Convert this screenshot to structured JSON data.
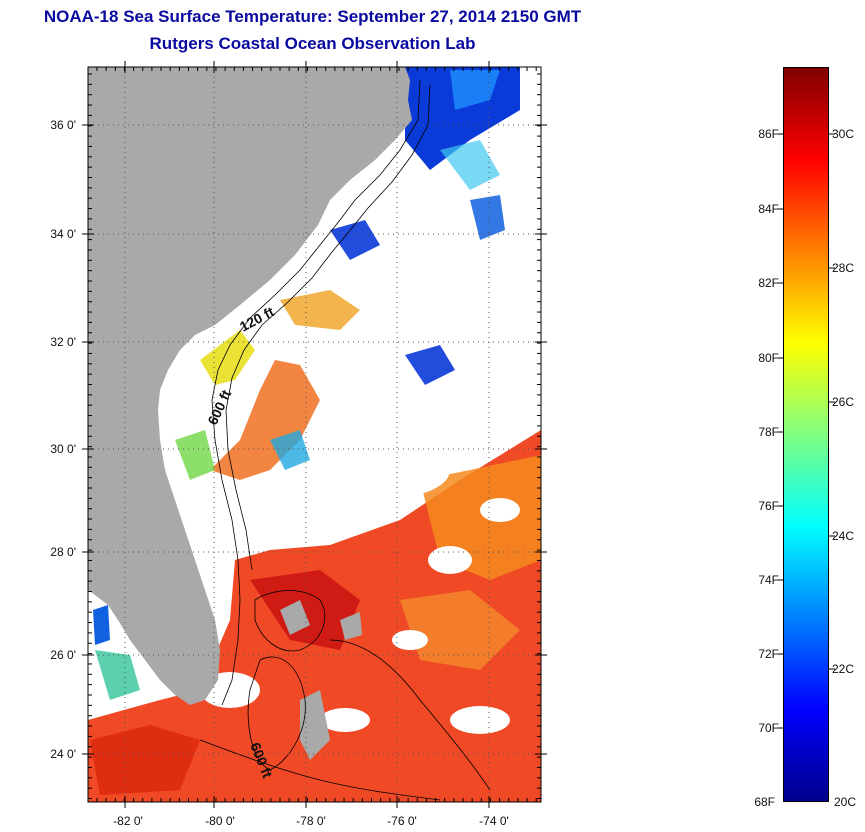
{
  "title_line1": "NOAA-18 Sea Surface Temperature:  September 27, 2014 2150 GMT",
  "title_line2": "Rutgers Coastal Ocean Observation Lab",
  "latitude_labels": [
    "36 0'",
    "34 0'",
    "32 0'",
    "30 0'",
    "28 0'",
    "26 0'",
    "24 0'"
  ],
  "longitude_labels": [
    "-82 0'",
    "-80 0'",
    "-78 0'",
    "-76 0'",
    "-74 0'"
  ],
  "contour_labels": [
    "120 ft",
    "600 ft",
    "600 ft"
  ],
  "colorbar": {
    "fahrenheit_labels": [
      "86F",
      "84F",
      "82F",
      "80F",
      "78F",
      "76F",
      "74F",
      "72F",
      "70F",
      "68F"
    ],
    "celsius_labels": [
      "30C",
      "28C",
      "26C",
      "24C",
      "22C",
      "20C"
    ],
    "colors": [
      "#00008b",
      "#0000ff",
      "#0080ff",
      "#00ffff",
      "#80ff80",
      "#ffff00",
      "#ff8000",
      "#ff0000",
      "#800000"
    ]
  },
  "colors": {
    "land": "#a9a9a9",
    "title": "#0a0aa0",
    "warm_water": "#ef3a12",
    "cool_water": "#0a3ad8"
  }
}
